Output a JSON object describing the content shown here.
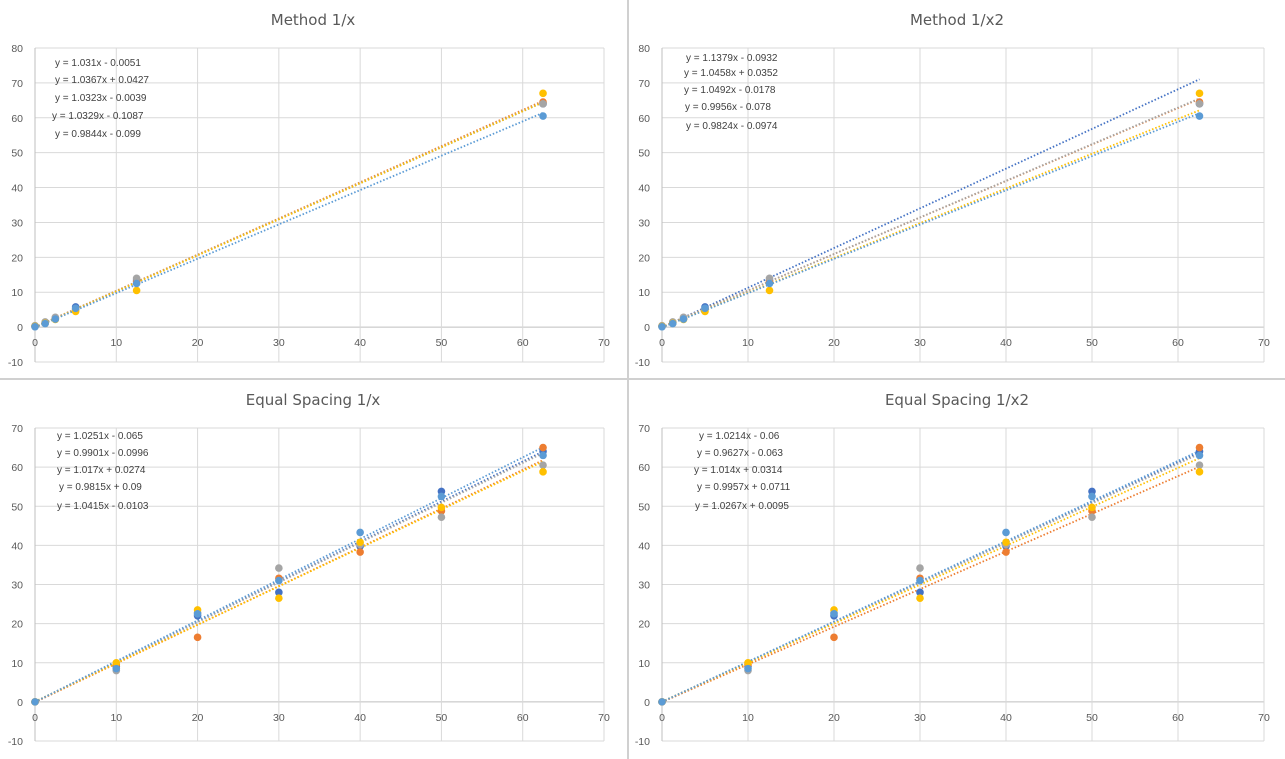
{
  "series_colors": [
    "#4472C4",
    "#ED7D31",
    "#A5A5A5",
    "#FFC000",
    "#5B9BD5"
  ],
  "chart_data": [
    {
      "type": "scatter",
      "title": "Method 1/x",
      "xlim": [
        0,
        70
      ],
      "ylim": [
        -10,
        80
      ],
      "xticks": [
        "0",
        "10",
        "20",
        "30",
        "40",
        "50",
        "60",
        "70"
      ],
      "yticks": [
        "-10",
        "0",
        "10",
        "20",
        "30",
        "40",
        "50",
        "60",
        "70",
        "80"
      ],
      "grid": true,
      "trendline": "linear, dotted",
      "x": [
        0,
        1.25,
        2.5,
        5,
        12.5,
        62.5
      ],
      "series": [
        {
          "values": [
            0.2,
            1.2,
            2.5,
            5.8,
            13.5,
            64.0
          ]
        },
        {
          "values": [
            0.3,
            1.3,
            2.4,
            5.2,
            13.0,
            64.5
          ]
        },
        {
          "values": [
            0.4,
            1.5,
            2.8,
            5.0,
            14.0,
            64.0
          ]
        },
        {
          "values": [
            0.2,
            1.1,
            2.2,
            4.5,
            10.5,
            67.0
          ]
        },
        {
          "values": [
            0.1,
            1.0,
            2.3,
            5.4,
            12.5,
            60.5
          ]
        }
      ],
      "equations": [
        "y = 1.031x - 0.0051",
        "y = 1.0367x + 0.0427",
        "y = 1.0323x - 0.0039",
        "y = 1.0329x - 0.1087",
        "y = 0.9844x - 0.099"
      ],
      "fits": [
        [
          1.031,
          -0.0051
        ],
        [
          1.0367,
          0.0427
        ],
        [
          1.0323,
          -0.0039
        ],
        [
          1.0329,
          -0.1087
        ],
        [
          0.9844,
          -0.099
        ]
      ]
    },
    {
      "type": "scatter",
      "title": "Method 1/x2",
      "xlim": [
        0,
        70
      ],
      "ylim": [
        -10,
        80
      ],
      "xticks": [
        "0",
        "10",
        "20",
        "30",
        "40",
        "50",
        "60",
        "70"
      ],
      "yticks": [
        "-10",
        "0",
        "10",
        "20",
        "30",
        "40",
        "50",
        "60",
        "70",
        "80"
      ],
      "grid": true,
      "trendline": "linear, dotted",
      "x": [
        0,
        1.25,
        2.5,
        5,
        12.5,
        62.5
      ],
      "series": [
        {
          "values": [
            0.2,
            1.2,
            2.5,
            5.8,
            13.5,
            64.0
          ]
        },
        {
          "values": [
            0.3,
            1.3,
            2.4,
            5.2,
            13.0,
            64.5
          ]
        },
        {
          "values": [
            0.4,
            1.5,
            2.8,
            5.0,
            14.0,
            64.0
          ]
        },
        {
          "values": [
            0.2,
            1.1,
            2.2,
            4.5,
            10.5,
            67.0
          ]
        },
        {
          "values": [
            0.1,
            1.0,
            2.3,
            5.4,
            12.5,
            60.5
          ]
        }
      ],
      "equations": [
        "y = 1.1379x - 0.0932",
        "y = 1.0458x + 0.0352",
        "y = 1.0492x - 0.0178",
        "y = 0.9956x - 0.078",
        "y = 0.9824x - 0.0974"
      ],
      "fits": [
        [
          1.1379,
          -0.0932
        ],
        [
          1.0458,
          0.0352
        ],
        [
          1.0492,
          -0.0178
        ],
        [
          0.9956,
          -0.078
        ],
        [
          0.9824,
          -0.0974
        ]
      ]
    },
    {
      "type": "scatter",
      "title": "Equal Spacing 1/x",
      "xlim": [
        0,
        70
      ],
      "ylim": [
        -10,
        70
      ],
      "xticks": [
        "0",
        "10",
        "20",
        "30",
        "40",
        "50",
        "60",
        "70"
      ],
      "yticks": [
        "-10",
        "0",
        "10",
        "20",
        "30",
        "40",
        "50",
        "60",
        "70"
      ],
      "grid": true,
      "trendline": "linear, dotted",
      "x": [
        0,
        10,
        20,
        30,
        40,
        50,
        62.5
      ],
      "series": [
        {
          "values": [
            0,
            9.0,
            22.0,
            28.0,
            39.8,
            53.8,
            64.0
          ]
        },
        {
          "values": [
            0,
            9.5,
            16.5,
            31.6,
            38.3,
            48.8,
            65.0
          ]
        },
        {
          "values": [
            0,
            8.0,
            22.8,
            34.2,
            40.2,
            47.2,
            60.5
          ]
        },
        {
          "values": [
            0,
            10.0,
            23.5,
            26.5,
            40.8,
            49.7,
            58.8
          ]
        },
        {
          "values": [
            0,
            8.5,
            22.5,
            31.0,
            43.3,
            52.5,
            63.0
          ]
        }
      ],
      "equations": [
        "y = 1.0251x - 0.065",
        "y = 0.9901x - 0.0996",
        "y = 1.017x + 0.0274",
        "y = 0.9815x + 0.09",
        "y = 1.0415x - 0.0103"
      ],
      "fits": [
        [
          1.0251,
          -0.065
        ],
        [
          0.9901,
          -0.0996
        ],
        [
          1.017,
          0.0274
        ],
        [
          0.9815,
          0.09
        ],
        [
          1.0415,
          -0.0103
        ]
      ]
    },
    {
      "type": "scatter",
      "title": "Equal Spacing 1/x2",
      "xlim": [
        0,
        70
      ],
      "ylim": [
        -10,
        70
      ],
      "xticks": [
        "0",
        "10",
        "20",
        "30",
        "40",
        "50",
        "60",
        "70"
      ],
      "yticks": [
        "-10",
        "0",
        "10",
        "20",
        "30",
        "40",
        "50",
        "60",
        "70"
      ],
      "grid": true,
      "trendline": "linear, dotted",
      "x": [
        0,
        10,
        20,
        30,
        40,
        50,
        62.5
      ],
      "series": [
        {
          "values": [
            0,
            9.0,
            22.0,
            28.0,
            39.8,
            53.8,
            64.0
          ]
        },
        {
          "values": [
            0,
            9.5,
            16.5,
            31.6,
            38.3,
            48.8,
            65.0
          ]
        },
        {
          "values": [
            0,
            8.0,
            22.8,
            34.2,
            40.2,
            47.2,
            60.5
          ]
        },
        {
          "values": [
            0,
            10.0,
            23.5,
            26.5,
            40.8,
            49.7,
            58.8
          ]
        },
        {
          "values": [
            0,
            8.5,
            22.5,
            31.0,
            43.3,
            52.5,
            63.0
          ]
        }
      ],
      "equations": [
        "y = 1.0214x - 0.06",
        "y = 0.9627x - 0.063",
        "y = 1.014x + 0.0314",
        "y = 0.9957x + 0.0711",
        "y = 1.0267x + 0.0095"
      ],
      "fits": [
        [
          1.0214,
          -0.06
        ],
        [
          0.9627,
          -0.063
        ],
        [
          1.014,
          0.0314
        ],
        [
          0.9957,
          0.0711
        ],
        [
          1.0267,
          0.0095
        ]
      ]
    }
  ]
}
